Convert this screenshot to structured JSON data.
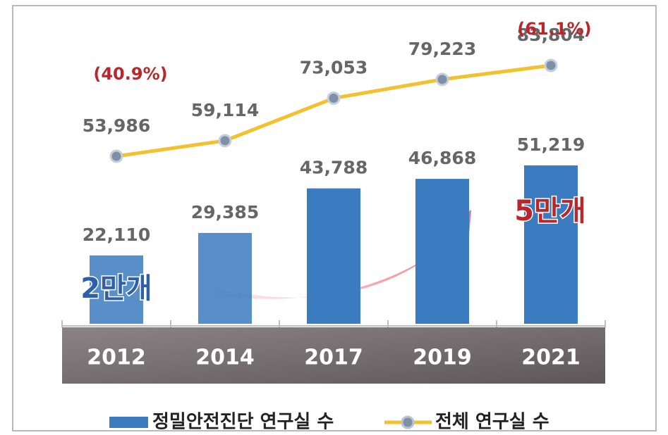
{
  "chart_data": {
    "type": "bar-line",
    "categories": [
      "2012",
      "2014",
      "2017",
      "2019",
      "2021"
    ],
    "series": [
      {
        "name": "정밀안전진단 연구실 수",
        "type": "bar",
        "color": "#3b7bbf",
        "values": [
          22110,
          29385,
          43788,
          46868,
          51219
        ],
        "value_labels": [
          "22,110",
          "29,385",
          "43,788",
          "46,868",
          "51,219"
        ]
      },
      {
        "name": "전체 연구실 수",
        "type": "line",
        "color": "#f2c12e",
        "marker_color": "#7f8fa6",
        "values": [
          53986,
          59114,
          73053,
          79223,
          83804
        ],
        "value_labels": [
          "53,986",
          "59,114",
          "73,053",
          "79,223",
          "83,804"
        ]
      }
    ],
    "annotations": [
      {
        "text": "(40.9%)",
        "category": 0
      },
      {
        "text": "(61.1%)",
        "category": 4
      },
      {
        "text": "2만개",
        "category": 0
      },
      {
        "text": "5만개",
        "category": 4
      }
    ],
    "annotation_color": "#b8272c"
  }
}
